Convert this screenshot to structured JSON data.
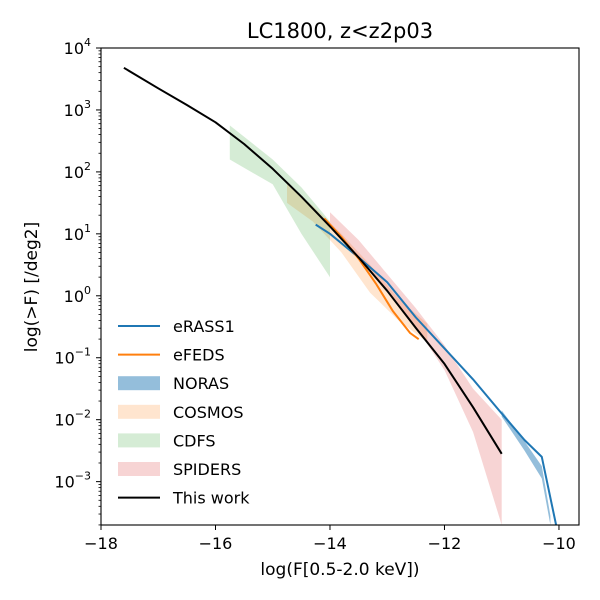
{
  "chart_data": {
    "type": "line",
    "title": "LC1800, z<z2p03",
    "xlabel": "log(F[0.5-2.0 keV])",
    "ylabel": "log(>F) [/deg2]",
    "xlim": [
      -18,
      -9.65
    ],
    "ylim": [
      -3.7,
      4
    ],
    "yscale": "log",
    "grid": false,
    "legend_position": "lower-left",
    "x_ticks": [
      {
        "value": -18,
        "label": "−18"
      },
      {
        "value": -16,
        "label": "−16"
      },
      {
        "value": -14,
        "label": "−14"
      },
      {
        "value": -12,
        "label": "−12"
      },
      {
        "value": -10,
        "label": "−10"
      }
    ],
    "y_ticks": [
      {
        "value": 4,
        "base": "10",
        "exp": "4"
      },
      {
        "value": 3,
        "base": "10",
        "exp": "3"
      },
      {
        "value": 2,
        "base": "10",
        "exp": "2"
      },
      {
        "value": 1,
        "base": "10",
        "exp": "1"
      },
      {
        "value": 0,
        "base": "10",
        "exp": "0"
      },
      {
        "value": -1,
        "base": "10",
        "exp": "−1"
      },
      {
        "value": -2,
        "base": "10",
        "exp": "−2"
      },
      {
        "value": -3,
        "base": "10",
        "exp": "−3"
      }
    ],
    "series": [
      {
        "name": "eRASS1",
        "kind": "line",
        "color": "#1f77b4",
        "x": [
          -14.25,
          -14.0,
          -13.5,
          -13.0,
          -12.5,
          -12.0,
          -11.5,
          -11.0,
          -10.6,
          -10.3,
          -10.05
        ],
        "y": [
          1.15,
          1.0,
          0.62,
          0.22,
          -0.35,
          -0.85,
          -1.35,
          -1.9,
          -2.33,
          -2.6,
          -3.7
        ]
      },
      {
        "name": "eFEDS",
        "kind": "line",
        "color": "#ff7f0e",
        "x": [
          -14.1,
          -13.8,
          -13.5,
          -13.2,
          -12.9,
          -12.6,
          -12.45
        ],
        "y": [
          1.25,
          0.95,
          0.6,
          0.2,
          -0.25,
          -0.6,
          -0.7
        ]
      },
      {
        "name": "NORAS",
        "kind": "band",
        "color": "#1f77b4",
        "opacity": 0.48,
        "x": [
          -11.0,
          -10.6,
          -10.3,
          -10.15
        ],
        "y_low": [
          -1.95,
          -2.5,
          -2.95,
          -3.7
        ],
        "y_high": [
          -1.85,
          -2.35,
          -2.75,
          -3.55
        ]
      },
      {
        "name": "COSMOS",
        "kind": "band",
        "color": "#ff7f0e",
        "opacity": 0.2,
        "x": [
          -14.75,
          -14.3,
          -13.8,
          -13.3,
          -12.8,
          -12.3
        ],
        "y_low": [
          1.5,
          1.2,
          0.7,
          0.05,
          -0.4,
          -0.75
        ],
        "y_high": [
          1.8,
          1.45,
          1.0,
          0.5,
          -0.05,
          -0.45
        ]
      },
      {
        "name": "CDFS",
        "kind": "band",
        "color": "#2ca02c",
        "opacity": 0.2,
        "x": [
          -15.75,
          -15.0,
          -14.5,
          -14.0
        ],
        "y_low": [
          2.2,
          1.8,
          1.0,
          0.3
        ],
        "y_high": [
          2.75,
          2.2,
          1.75,
          1.2
        ]
      },
      {
        "name": "SPIDERS",
        "kind": "band",
        "color": "#d62728",
        "opacity": 0.2,
        "x": [
          -14.0,
          -13.5,
          -13.0,
          -12.5,
          -12.0,
          -11.5,
          -11.0
        ],
        "y_low": [
          1.1,
          0.6,
          0.1,
          -0.5,
          -1.2,
          -2.2,
          -3.7
        ],
        "y_high": [
          1.35,
          0.9,
          0.35,
          -0.2,
          -0.8,
          -1.5,
          -2.0
        ]
      },
      {
        "name": "This work",
        "kind": "line",
        "color": "#000000",
        "x": [
          -17.6,
          -17.0,
          -16.5,
          -16.0,
          -15.5,
          -15.0,
          -14.5,
          -14.0,
          -13.5,
          -13.0,
          -12.5,
          -12.0,
          -11.5,
          -11.0
        ],
        "y": [
          3.68,
          3.35,
          3.08,
          2.8,
          2.45,
          2.05,
          1.6,
          1.12,
          0.62,
          0.08,
          -0.52,
          -1.1,
          -1.8,
          -2.55
        ]
      }
    ]
  }
}
